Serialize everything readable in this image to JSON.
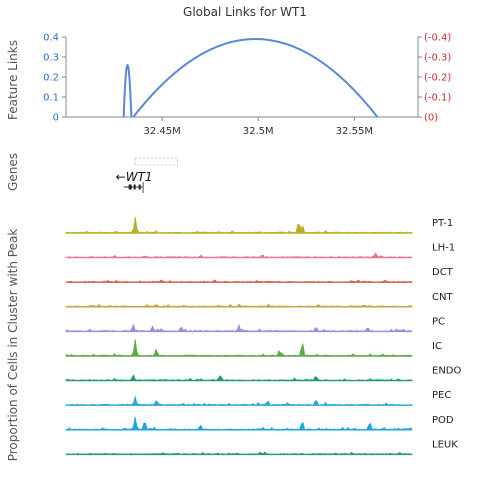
{
  "figure": {
    "title": "Global Links for WT1",
    "left_axis_label": "Feature Links",
    "genes_label": "Genes",
    "tracks_axis_label": "Proportion of Cells in Cluster with Peak",
    "gene_name": "WT1",
    "gene_strand_arrow": "←"
  },
  "chart_data": {
    "type": "line",
    "title": "Global Links for WT1",
    "ylabel": "Feature Links",
    "xlim": [
      32.4,
      32.58
    ],
    "xunit": "M",
    "xticks": [
      "32.45M",
      "32.5M",
      "32.55M"
    ],
    "xtick_values": [
      32.45,
      32.5,
      32.55
    ],
    "ylim": [
      0,
      0.45
    ],
    "yticks_left": [
      "0",
      "0.1",
      "0.2",
      "0.3",
      "0.4"
    ],
    "ytick_values": [
      0,
      0.1,
      0.2,
      0.3,
      0.4
    ],
    "yticks_right": [
      "(0)",
      "(-0.1)",
      "(-0.2)",
      "(-0.3)",
      "(-0.4)"
    ],
    "left_axis_color": "#2a6bd1",
    "right_axis_color": "#d22b2b",
    "link_color": "#5b87d8",
    "links": [
      {
        "start": 32.43,
        "end": 32.434,
        "score": 0.26
      },
      {
        "start": 32.435,
        "end": 32.562,
        "score": 0.39
      }
    ],
    "gene": {
      "name": "WT1",
      "start": 32.43,
      "end": 32.437,
      "strand": "-"
    },
    "highlight_region": [
      32.436,
      32.458
    ],
    "tracks": [
      {
        "name": "PT-1",
        "color": "#b5b229",
        "peaks": [
          [
            32.436,
            0.9
          ],
          [
            32.521,
            0.8
          ],
          [
            32.523,
            0.5
          ]
        ]
      },
      {
        "name": "LH-1",
        "color": "#e8788c",
        "peaks": [
          [
            32.561,
            0.25
          ],
          [
            32.502,
            0.12
          ],
          [
            32.47,
            0.1
          ]
        ]
      },
      {
        "name": "DCT",
        "color": "#d6604d",
        "peaks": [
          [
            32.566,
            0.12
          ],
          [
            32.45,
            0.08
          ]
        ]
      },
      {
        "name": "CNT",
        "color": "#c3a33d",
        "peaks": [
          [
            32.447,
            0.12
          ],
          [
            32.49,
            0.1
          ],
          [
            32.555,
            0.1
          ]
        ]
      },
      {
        "name": "PC",
        "color": "#9d8ee0",
        "peaks": [
          [
            32.435,
            0.35
          ],
          [
            32.445,
            0.3
          ],
          [
            32.46,
            0.3
          ],
          [
            32.49,
            0.3
          ],
          [
            32.53,
            0.3
          ],
          [
            32.557,
            0.3
          ]
        ]
      },
      {
        "name": "IC",
        "color": "#5daa48",
        "peaks": [
          [
            32.436,
            1.0
          ],
          [
            32.447,
            0.4
          ],
          [
            32.523,
            0.9
          ],
          [
            32.511,
            0.35
          ]
        ]
      },
      {
        "name": "ENDO",
        "color": "#1d9c7b",
        "peaks": [
          [
            32.435,
            0.35
          ],
          [
            32.48,
            0.25
          ],
          [
            32.53,
            0.3
          ]
        ]
      },
      {
        "name": "PEC",
        "color": "#2aa9d8",
        "peaks": [
          [
            32.436,
            0.5
          ],
          [
            32.447,
            0.3
          ],
          [
            32.505,
            0.3
          ],
          [
            32.53,
            0.35
          ]
        ]
      },
      {
        "name": "POD",
        "color": "#1fa5e0",
        "peaks": [
          [
            32.436,
            0.8
          ],
          [
            32.441,
            0.6
          ],
          [
            32.523,
            0.6
          ],
          [
            32.558,
            0.5
          ],
          [
            32.47,
            0.3
          ]
        ]
      },
      {
        "name": "LEUK",
        "color": "#2b9a6e",
        "peaks": []
      }
    ]
  }
}
